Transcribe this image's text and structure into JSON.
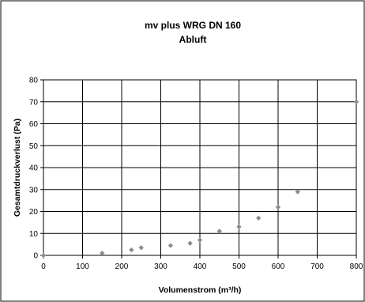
{
  "chart_data": {
    "type": "scatter",
    "title": "mv plus WRG DN 160",
    "subtitle": "Abluft",
    "xlabel": "Volumenstrom (m³/h)",
    "ylabel": "Gesamtdruckverlust (Pa)",
    "xlim": [
      0,
      800
    ],
    "ylim": [
      0,
      80
    ],
    "x_ticks": [
      0,
      100,
      200,
      300,
      400,
      500,
      600,
      700,
      800
    ],
    "y_ticks": [
      0,
      10,
      20,
      30,
      40,
      50,
      60,
      70,
      80
    ],
    "grid": true,
    "legend": "none",
    "marker_color": "#8c8c8c",
    "points": [
      {
        "x": 0,
        "y": 0
      },
      {
        "x": 150,
        "y": 1
      },
      {
        "x": 225,
        "y": 2.5
      },
      {
        "x": 250,
        "y": 3.5
      },
      {
        "x": 325,
        "y": 4.5
      },
      {
        "x": 375,
        "y": 5.5
      },
      {
        "x": 400,
        "y": 7
      },
      {
        "x": 450,
        "y": 11
      },
      {
        "x": 500,
        "y": 13
      },
      {
        "x": 550,
        "y": 17
      },
      {
        "x": 600,
        "y": 22
      },
      {
        "x": 650,
        "y": 29
      },
      {
        "x": 800,
        "y": 70
      }
    ]
  }
}
